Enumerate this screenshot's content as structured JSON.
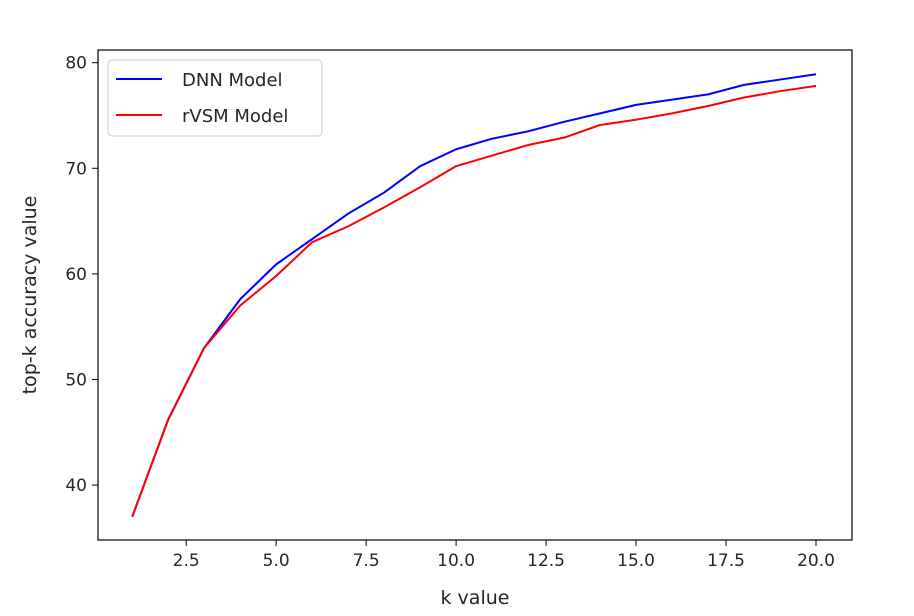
{
  "chart_data": {
    "type": "line",
    "title": "",
    "xlabel": "k value",
    "ylabel": "top-k accuracy value",
    "xlim": [
      0.05,
      21.0
    ],
    "ylim": [
      34.8,
      81.2
    ],
    "xticks": [
      2.5,
      5.0,
      7.5,
      10.0,
      12.5,
      15.0,
      17.5,
      20.0
    ],
    "xtick_labels": [
      "2.5",
      "5.0",
      "7.5",
      "10.0",
      "12.5",
      "15.0",
      "17.5",
      "20.0"
    ],
    "yticks": [
      40,
      50,
      60,
      70,
      80
    ],
    "ytick_labels": [
      "40",
      "50",
      "60",
      "70",
      "80"
    ],
    "grid": false,
    "legend_position": "upper-left",
    "x": [
      1,
      2,
      3,
      4,
      5,
      6,
      7,
      8,
      9,
      10,
      11,
      12,
      13,
      14,
      15,
      16,
      17,
      18,
      19,
      20
    ],
    "series": [
      {
        "name": "DNN Model",
        "color": "#0000ff",
        "values": [
          37.0,
          46.2,
          53.0,
          57.6,
          60.9,
          63.3,
          65.7,
          67.7,
          70.2,
          71.8,
          72.8,
          73.5,
          74.4,
          75.2,
          76.0,
          76.5,
          77.0,
          77.9,
          78.4,
          78.9
        ]
      },
      {
        "name": "rVSM Model",
        "color": "#ff0000",
        "values": [
          37.0,
          46.2,
          53.0,
          57.0,
          59.8,
          63.0,
          64.5,
          66.3,
          68.2,
          70.2,
          71.2,
          72.2,
          72.9,
          74.1,
          74.6,
          75.2,
          75.9,
          76.7,
          77.3,
          77.8
        ]
      }
    ]
  }
}
